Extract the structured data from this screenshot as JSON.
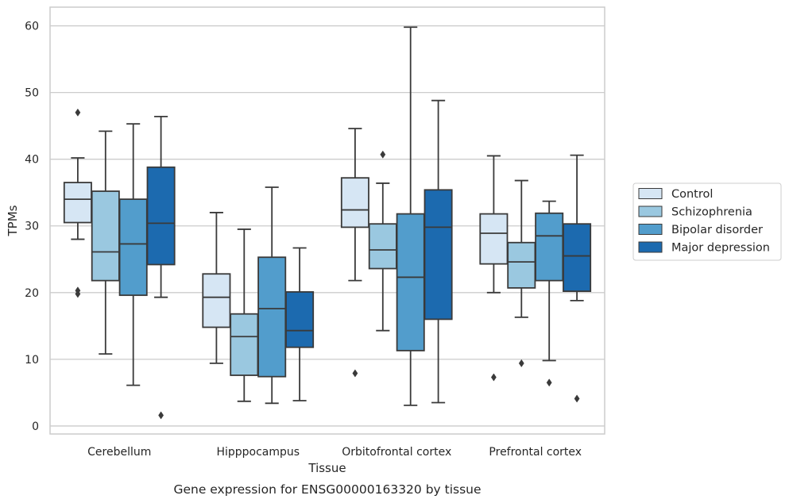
{
  "chart_data": {
    "type": "box",
    "xlabel": "Tissue",
    "ylabel": "TPMs",
    "caption": "Gene expression for ENSG00000163320 by tissue",
    "ylim": [
      -1.2,
      62.8
    ],
    "yticks": [
      0,
      10,
      20,
      30,
      40,
      50,
      60
    ],
    "grid": "horizontal",
    "legend_position": "right",
    "categories": [
      "Cerebellum",
      "Hipppocampus",
      "Orbitofrontal cortex",
      "Prefrontal cortex"
    ],
    "series": [
      {
        "name": "Control",
        "color": "#d6e6f4",
        "boxes": [
          {
            "whisker_low": 28,
            "q1": 30.5,
            "median": 34,
            "q3": 36.5,
            "whisker_high": 40.2,
            "outliers": [
              47,
              20.3,
              19.8
            ]
          },
          {
            "whisker_low": 9.4,
            "q1": 14.8,
            "median": 19.3,
            "q3": 22.8,
            "whisker_high": 32,
            "outliers": []
          },
          {
            "whisker_low": 21.8,
            "q1": 29.8,
            "median": 32.4,
            "q3": 37.2,
            "whisker_high": 44.6,
            "outliers": [
              7.9
            ]
          },
          {
            "whisker_low": 20,
            "q1": 24.3,
            "median": 28.9,
            "q3": 31.8,
            "whisker_high": 40.5,
            "outliers": [
              7.3
            ]
          }
        ]
      },
      {
        "name": "Schizophrenia",
        "color": "#9ac8e0",
        "boxes": [
          {
            "whisker_low": 10.8,
            "q1": 21.8,
            "median": 26.1,
            "q3": 35.2,
            "whisker_high": 44.2,
            "outliers": []
          },
          {
            "whisker_low": 3.7,
            "q1": 7.6,
            "median": 13.4,
            "q3": 16.8,
            "whisker_high": 29.5,
            "outliers": []
          },
          {
            "whisker_low": 14.3,
            "q1": 23.6,
            "median": 26.4,
            "q3": 30.3,
            "whisker_high": 36.4,
            "outliers": [
              40.7
            ]
          },
          {
            "whisker_low": 16.3,
            "q1": 20.7,
            "median": 24.6,
            "q3": 27.5,
            "whisker_high": 36.8,
            "outliers": [
              9.4
            ]
          }
        ]
      },
      {
        "name": "Bipolar disorder",
        "color": "#529dcc",
        "boxes": [
          {
            "whisker_low": 6.1,
            "q1": 19.6,
            "median": 27.3,
            "q3": 34,
            "whisker_high": 45.3,
            "outliers": []
          },
          {
            "whisker_low": 3.4,
            "q1": 7.4,
            "median": 17.6,
            "q3": 25.3,
            "whisker_high": 35.8,
            "outliers": []
          },
          {
            "whisker_low": 3.1,
            "q1": 11.3,
            "median": 22.3,
            "q3": 31.8,
            "whisker_high": 59.8,
            "outliers": []
          },
          {
            "whisker_low": 9.8,
            "q1": 21.8,
            "median": 28.5,
            "q3": 31.9,
            "whisker_high": 33.7,
            "outliers": [
              6.5
            ]
          }
        ]
      },
      {
        "name": "Major depression",
        "color": "#1c6aaf",
        "boxes": [
          {
            "whisker_low": 19.3,
            "q1": 24.2,
            "median": 30.4,
            "q3": 38.8,
            "whisker_high": 46.4,
            "outliers": [
              1.6
            ]
          },
          {
            "whisker_low": 3.8,
            "q1": 11.8,
            "median": 14.3,
            "q3": 20.1,
            "whisker_high": 26.7,
            "outliers": []
          },
          {
            "whisker_low": 3.5,
            "q1": 16,
            "median": 29.8,
            "q3": 35.4,
            "whisker_high": 48.8,
            "outliers": []
          },
          {
            "whisker_low": 18.8,
            "q1": 20.2,
            "median": 25.5,
            "q3": 30.3,
            "whisker_high": 40.6,
            "outliers": [
              4.1
            ]
          }
        ]
      }
    ]
  }
}
